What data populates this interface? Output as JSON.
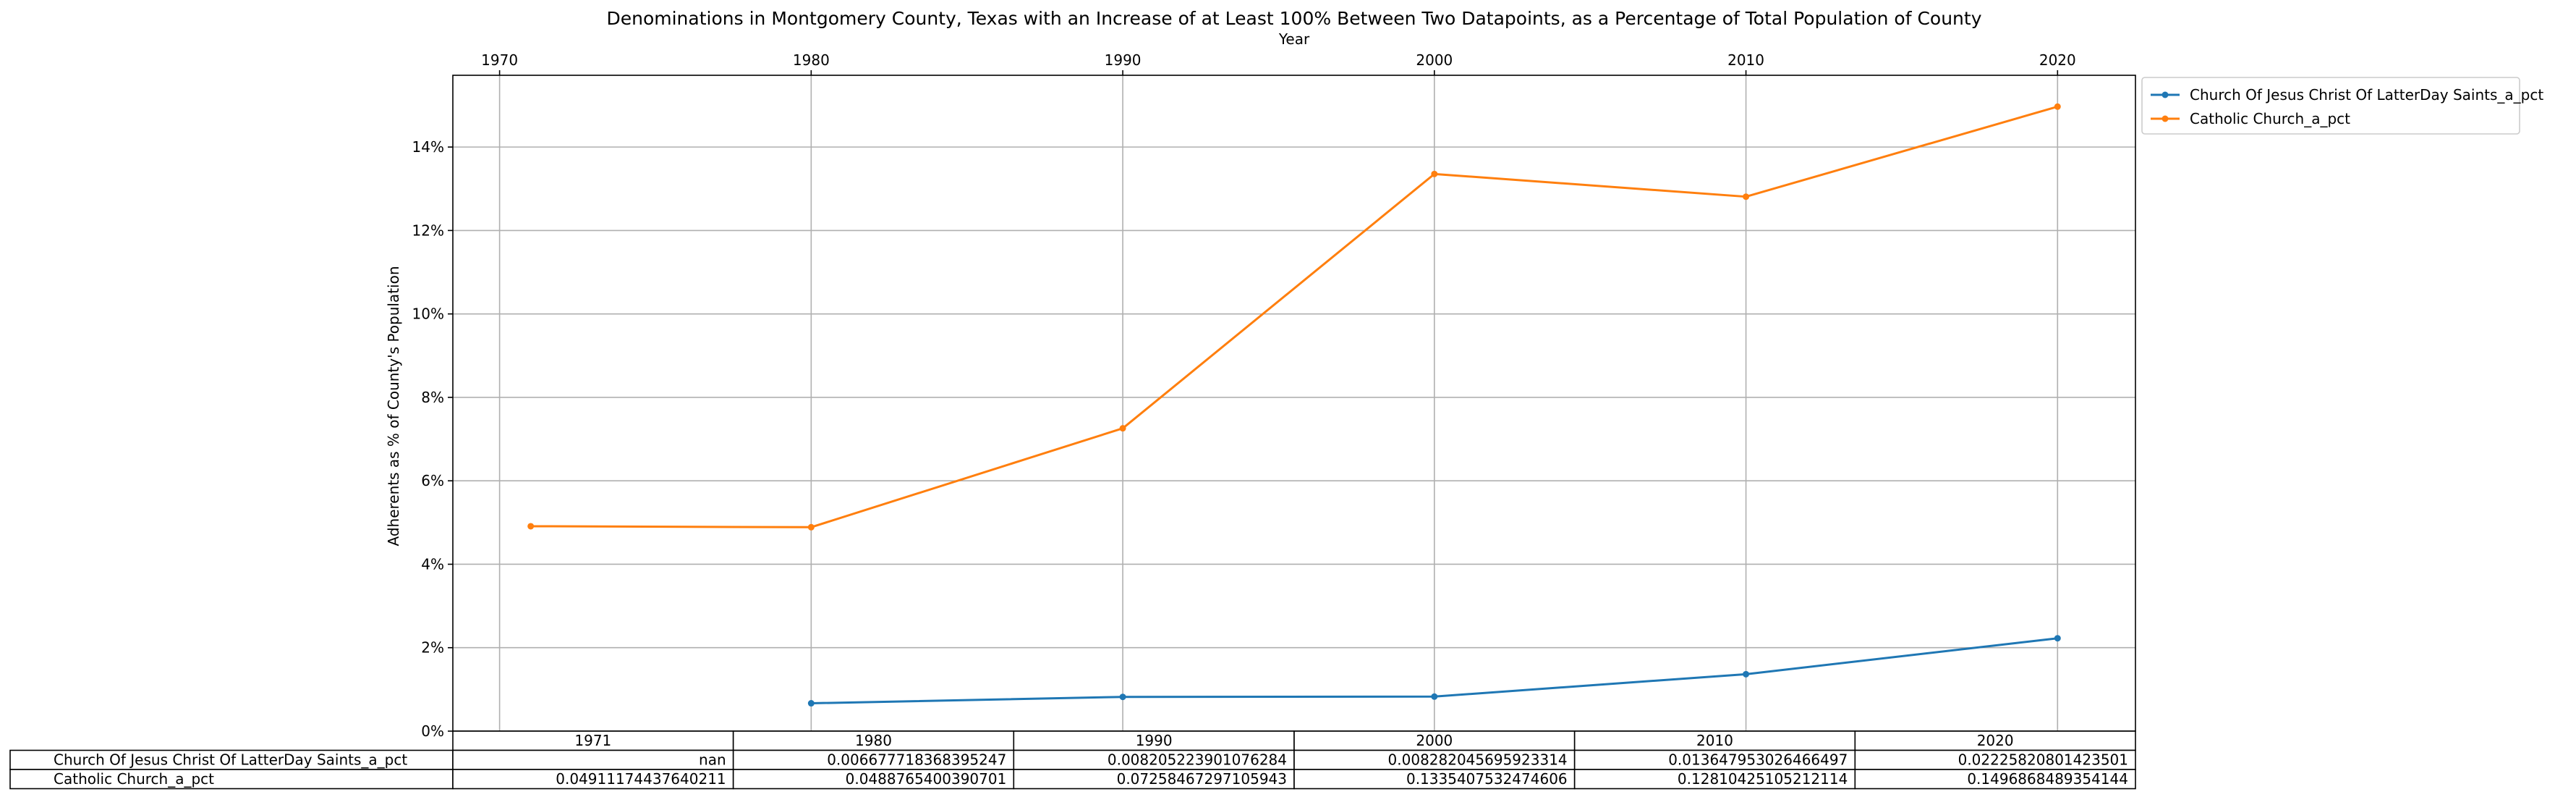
{
  "chart_data": {
    "type": "line",
    "title": "Denominations in Montgomery County, Texas with an Increase of at Least 100% Between Two Datapoints, as a Percentage of Total Population of County",
    "xlabel": "Year",
    "ylabel": "Adherents as % of County's Population",
    "x_ticks": [
      1970,
      1980,
      1990,
      2000,
      2010,
      2020
    ],
    "x_axis_position": "top",
    "xlim": [
      1968.5,
      2022.5
    ],
    "y_ticks": [
      0,
      0.02,
      0.04,
      0.06,
      0.08,
      0.1,
      0.12,
      0.14
    ],
    "y_tick_labels": [
      "0%",
      "2%",
      "4%",
      "6%",
      "8%",
      "10%",
      "12%",
      "14%"
    ],
    "ylim": [
      0,
      0.1572
    ],
    "grid": true,
    "legend_placement": "outside upper right",
    "x": [
      1971,
      1980,
      1990,
      2000,
      2010,
      2020
    ],
    "series": [
      {
        "name": "Church Of Jesus Christ Of LatterDay Saints_a_pct",
        "color": "#1f77b4",
        "values": [
          null,
          0.006677718368395247,
          0.008205223901076284,
          0.008282045695923314,
          0.013647953026466497,
          0.02225820801423501
        ],
        "cell_text": [
          "nan",
          "0.006677718368395247",
          "0.008205223901076284",
          "0.008282045695923314",
          "0.013647953026466497",
          "0.02225820801423501"
        ]
      },
      {
        "name": "Catholic Church_a_pct",
        "color": "#ff7f0e",
        "values": [
          0.04911174437640211,
          0.0488765400390701,
          0.07258467297105943,
          0.1335407532474606,
          0.12810425105212114,
          0.1496868489354144
        ],
        "cell_text": [
          "0.04911174437640211",
          "0.0488765400390701",
          "0.07258467297105943",
          "0.1335407532474606",
          "0.12810425105212114",
          "0.1496868489354144"
        ]
      }
    ],
    "table": {
      "col_labels": [
        "1971",
        "1980",
        "1990",
        "2000",
        "2010",
        "2020"
      ]
    }
  }
}
